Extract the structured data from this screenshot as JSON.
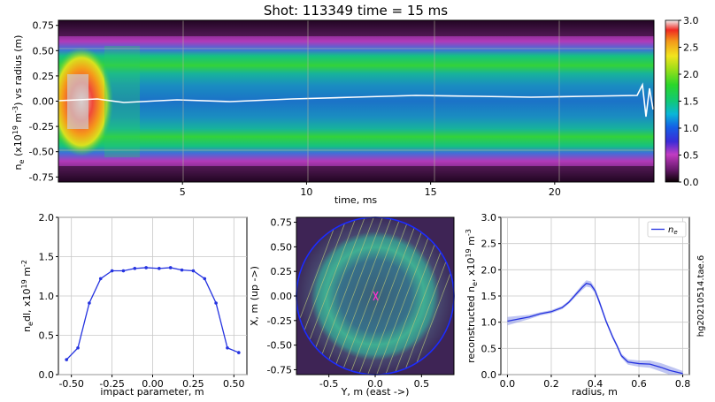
{
  "title": "Shot: 113349    time = 15 ms",
  "side_label": "hg20210514.tae.6",
  "colors": {
    "line": "#2533e0",
    "band": "#8b96e8",
    "grid": "#c8c8c8",
    "chord": "#b9c77a",
    "circle": "#1c2cff",
    "center_mark": "#ff33cc",
    "white_trace": "#ffffff"
  },
  "chart_data": [
    {
      "type": "heatmap",
      "name": "spectrogram",
      "xlabel": "time, ms",
      "ylabel": "n_e (x10^19 m^-3)  vs  radius (m)",
      "xlim": [
        0,
        24
      ],
      "ylim": [
        -0.8,
        0.8
      ],
      "xticks": [
        5,
        10,
        15,
        20
      ],
      "yticks": [
        -0.75,
        -0.5,
        -0.25,
        0.0,
        0.25,
        0.5,
        0.75
      ],
      "colorbar": {
        "ticks": [
          0.0,
          0.5,
          1.0,
          1.5,
          2.0,
          2.5,
          3.0
        ],
        "range": [
          0,
          3
        ],
        "colormap": "gist_ncar"
      },
      "density_profile_vs_time": [
        {
          "t_ms": 0.5,
          "core": 3.0,
          "peak": 3.0
        },
        {
          "t_ms": 2.0,
          "core": 2.2,
          "peak": 2.6
        },
        {
          "t_ms": 4.0,
          "core": 1.4,
          "peak": 1.9
        },
        {
          "t_ms": 10.0,
          "core": 1.3,
          "peak": 1.8
        },
        {
          "t_ms": 20.0,
          "core": 1.3,
          "peak": 1.8
        },
        {
          "t_ms": 23.5,
          "core": 1.2,
          "peak": 1.5
        }
      ],
      "peak_radius_m": 0.37,
      "edge_radius_m": 0.6
    },
    {
      "type": "line",
      "name": "line-integrated density",
      "xlabel": "impact parameter, m",
      "ylabel": "n_e dl, x10^19 m^-2",
      "xlim": [
        -0.58,
        0.58
      ],
      "ylim": [
        0.0,
        2.0
      ],
      "xticks": [
        "-0.50",
        "-0.25",
        "0.00",
        "0.25",
        "0.50"
      ],
      "yticks": [
        "0.0",
        "0.5",
        "1.0",
        "1.5",
        "2.0"
      ],
      "x": [
        -0.53,
        -0.46,
        -0.39,
        -0.32,
        -0.25,
        -0.18,
        -0.11,
        -0.04,
        0.04,
        0.11,
        0.18,
        0.25,
        0.32,
        0.39,
        0.46,
        0.53
      ],
      "y": [
        0.19,
        0.34,
        0.91,
        1.22,
        1.32,
        1.32,
        1.35,
        1.36,
        1.35,
        1.36,
        1.33,
        1.32,
        1.22,
        0.91,
        0.34,
        0.28
      ]
    },
    {
      "type": "heatmap",
      "name": "reconstructed density map",
      "xlabel": "Y, m  (east ->)",
      "ylabel": "X, m  (up ->)",
      "xlim": [
        -0.85,
        0.85
      ],
      "ylim": [
        -0.8,
        0.8
      ],
      "xticks": [
        "-0.5",
        "0.0",
        "0.5"
      ],
      "yticks": [
        "-0.75",
        "-0.50",
        "-0.25",
        "0.00",
        "0.25",
        "0.50",
        "0.75"
      ],
      "vessel_radius_m": 0.8,
      "ring_radius_m": 0.37,
      "chord_count": 16
    },
    {
      "type": "line",
      "name": "reconstructed profile",
      "xlabel": "radius, m",
      "ylabel": "reconstructed n_e, x10^19 m^-3",
      "xlim": [
        -0.03,
        0.83
      ],
      "ylim": [
        0.0,
        3.0
      ],
      "xticks": [
        "0.0",
        "0.2",
        "0.4",
        "0.6",
        "0.8"
      ],
      "yticks": [
        "0.0",
        "0.5",
        "1.0",
        "1.5",
        "2.0",
        "2.5",
        "3.0"
      ],
      "legend": {
        "label": "n_e",
        "position": "top-right"
      },
      "x": [
        0.0,
        0.05,
        0.1,
        0.15,
        0.2,
        0.25,
        0.28,
        0.31,
        0.34,
        0.36,
        0.38,
        0.4,
        0.42,
        0.45,
        0.48,
        0.5,
        0.52,
        0.55,
        0.6,
        0.65,
        0.7,
        0.74,
        0.78,
        0.8
      ],
      "y": [
        1.02,
        1.06,
        1.1,
        1.16,
        1.2,
        1.28,
        1.38,
        1.52,
        1.66,
        1.74,
        1.72,
        1.6,
        1.38,
        1.02,
        0.72,
        0.55,
        0.36,
        0.24,
        0.21,
        0.2,
        0.14,
        0.08,
        0.04,
        0.02
      ],
      "band_halfwidth": [
        0.08,
        0.06,
        0.04,
        0.03,
        0.03,
        0.03,
        0.03,
        0.04,
        0.05,
        0.06,
        0.06,
        0.05,
        0.05,
        0.04,
        0.04,
        0.04,
        0.04,
        0.05,
        0.06,
        0.07,
        0.08,
        0.08,
        0.06,
        0.05
      ]
    }
  ]
}
